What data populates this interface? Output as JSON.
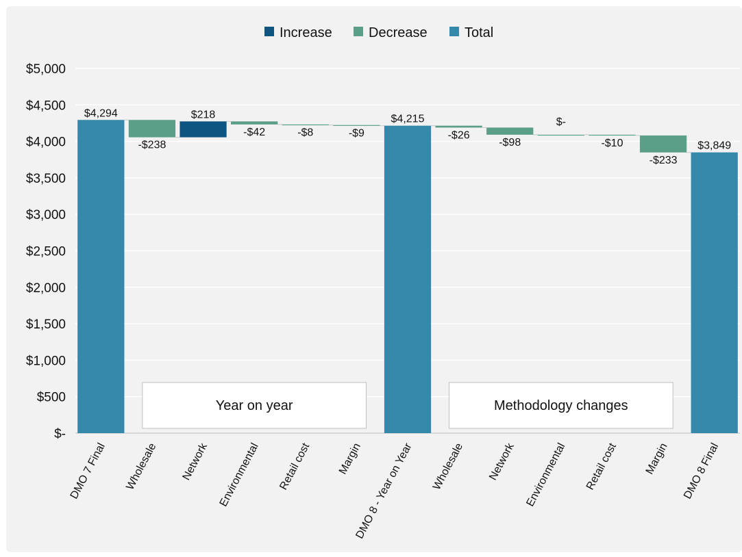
{
  "chart_data": {
    "type": "waterfall",
    "legend": [
      {
        "label": "Increase",
        "color": "#0e5581"
      },
      {
        "label": "Decrease",
        "color": "#5c9f88"
      },
      {
        "label": "Total",
        "color": "#3688ab"
      }
    ],
    "ylim": [
      0,
      5000
    ],
    "y_ticks": [
      {
        "value": 0,
        "label": "$-"
      },
      {
        "value": 500,
        "label": "$500"
      },
      {
        "value": 1000,
        "label": "$1,000"
      },
      {
        "value": 1500,
        "label": "$1,500"
      },
      {
        "value": 2000,
        "label": "$2,000"
      },
      {
        "value": 2500,
        "label": "$2,500"
      },
      {
        "value": 3000,
        "label": "$3,000"
      },
      {
        "value": 3500,
        "label": "$3,500"
      },
      {
        "value": 4000,
        "label": "$4,000"
      },
      {
        "value": 4500,
        "label": "$4,500"
      },
      {
        "value": 5000,
        "label": "$5,000"
      }
    ],
    "categories": [
      {
        "label": "DMO 7 Final",
        "kind": "total",
        "value": 4294,
        "value_label": "$4,294"
      },
      {
        "label": "Wholesale",
        "kind": "decrease",
        "value": -238,
        "value_label": "-$238"
      },
      {
        "label": "Network",
        "kind": "increase",
        "value": 218,
        "value_label": "$218"
      },
      {
        "label": "Environmental",
        "kind": "decrease",
        "value": -42,
        "value_label": "-$42"
      },
      {
        "label": "Retail cost",
        "kind": "decrease",
        "value": -8,
        "value_label": "-$8"
      },
      {
        "label": "Margin",
        "kind": "decrease",
        "value": -9,
        "value_label": "-$9"
      },
      {
        "label": "DMO 8 - Year on Year",
        "kind": "total",
        "value": 4215,
        "value_label": "$4,215"
      },
      {
        "label": "Wholesale",
        "kind": "decrease",
        "value": -26,
        "value_label": "-$26"
      },
      {
        "label": "Network",
        "kind": "decrease",
        "value": -98,
        "value_label": "-$98"
      },
      {
        "label": "Environmental",
        "kind": "decrease",
        "value": 0,
        "value_label": "$-"
      },
      {
        "label": "Retail cost",
        "kind": "decrease",
        "value": -10,
        "value_label": "-$10"
      },
      {
        "label": "Margin",
        "kind": "decrease",
        "value": -233,
        "value_label": "-$233"
      },
      {
        "label": "DMO 8 Final",
        "kind": "total",
        "value": 3849,
        "value_label": "$3,849"
      }
    ],
    "annotations": [
      {
        "text": "Year on year",
        "from_index": 1,
        "to_index": 5
      },
      {
        "text": "Methodology changes",
        "from_index": 7,
        "to_index": 11
      }
    ],
    "grid": true,
    "legend_position": "top-center"
  }
}
